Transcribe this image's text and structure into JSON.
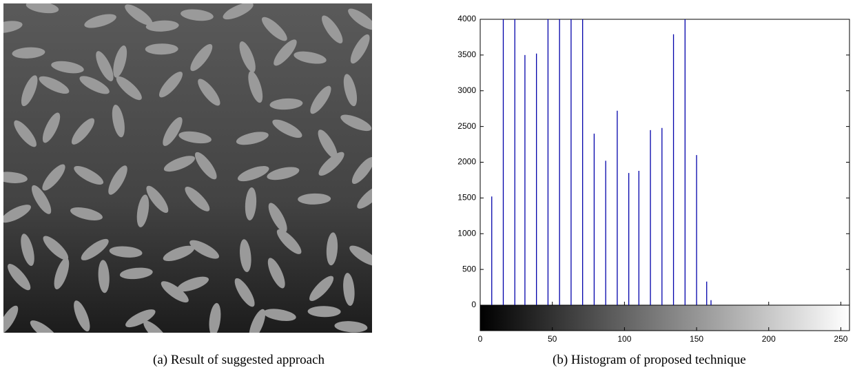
{
  "captions": [
    "(a) Result of suggested approach",
    "(b) Histogram of proposed technique"
  ],
  "chart_data": {
    "type": "stem",
    "color": "#0000aa",
    "x": [
      8,
      16,
      24,
      31,
      39,
      47,
      55,
      63,
      71,
      79,
      87,
      95,
      103,
      110,
      118,
      126,
      134,
      142,
      150,
      157,
      160
    ],
    "values": [
      1520,
      4000,
      4000,
      3500,
      3520,
      4000,
      4000,
      4000,
      4000,
      2400,
      2020,
      2720,
      1850,
      1880,
      2450,
      2480,
      3790,
      4000,
      2100,
      330,
      70
    ],
    "xlim": [
      0,
      256
    ],
    "ylim": [
      0,
      4000
    ],
    "xticks": [
      0,
      50,
      100,
      150,
      200,
      250
    ],
    "yticks": [
      0,
      500,
      1000,
      1500,
      2000,
      2500,
      3000,
      3500,
      4000
    ]
  }
}
